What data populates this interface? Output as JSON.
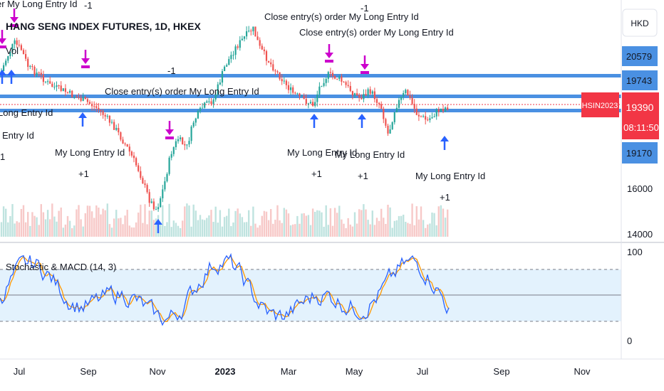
{
  "header": {
    "symbol_title": "HANG SENG INDEX FUTURES, 1D, HKEX",
    "vol_label": "Vol",
    "currency": "HKD"
  },
  "price_axis": {
    "labels": [
      "16000",
      "14000"
    ],
    "level_badges": [
      "20579",
      "19743",
      "19170"
    ],
    "symbol_badge": "HSIN2023",
    "current_price": "19390",
    "countdown": "08:11:50"
  },
  "oscillator": {
    "title": "Stochastic & MACD (14, 3)",
    "labels": [
      "100",
      "0"
    ]
  },
  "time_axis": {
    "labels": [
      "Jul",
      "Sep",
      "Nov",
      "2023",
      "Mar",
      "May",
      "Jul",
      "Sep",
      "Nov"
    ]
  },
  "annotations": {
    "long_entry": "My Long Entry Id",
    "long_entry_partial": "Long Entry Id",
    "entry_partial": "Entry Id",
    "close_order": "Close entry(s) order My Long Entry Id",
    "close_order_partial": "er My Long Entry Id",
    "plus_one": "+1",
    "minus_one": "-1",
    "number_one": "1"
  },
  "colors": {
    "up": "#26a69a",
    "down": "#ef5350",
    "level_line": "#4a90e2",
    "buy_arrow": "#2962ff",
    "sell_arrow": "#cc00cc",
    "stoch_k": "#2962ff",
    "stoch_d": "#ff9800",
    "band_fill": "#e3f2fd",
    "price_badge": "#f23645"
  }
}
